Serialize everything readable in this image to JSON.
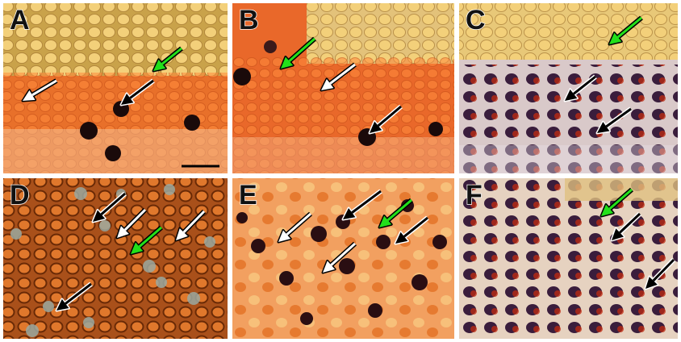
{
  "figure": {
    "panels": [
      {
        "label": "A"
      },
      {
        "label": "B"
      },
      {
        "label": "C"
      },
      {
        "label": "D"
      },
      {
        "label": "E"
      },
      {
        "label": "F"
      }
    ]
  }
}
